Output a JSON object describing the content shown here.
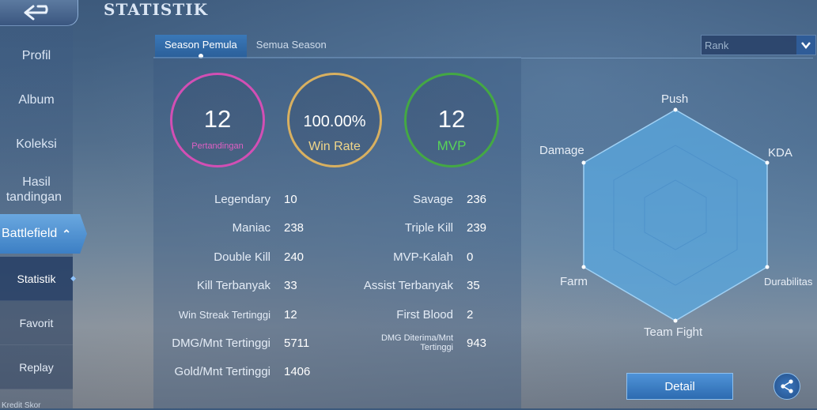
{
  "header": {
    "title": "STATISTIK",
    "back_icon": "back-arrow-icon"
  },
  "sidebar": {
    "items": [
      {
        "label": "Profil"
      },
      {
        "label": "Album"
      },
      {
        "label": "Koleksi"
      },
      {
        "label_line1": "Hasil",
        "label_line2": "tandingan"
      }
    ],
    "active_label": "Battlefield",
    "sub_items": [
      {
        "label": "Statistik",
        "selected": true
      },
      {
        "label": "Favorit"
      },
      {
        "label": "Replay"
      }
    ],
    "cut_item": "Kredit Skor"
  },
  "tabs": [
    {
      "label": "Season Pemula",
      "selected": true
    },
    {
      "label": "Semua Season"
    }
  ],
  "filter": {
    "value": "Rank"
  },
  "summary": {
    "matches": {
      "value": "12",
      "label": "Pertandingan",
      "color": "#d24fb4"
    },
    "win_rate": {
      "value": "100.00%",
      "label": "Win Rate",
      "color": "#d8b060"
    },
    "mvp": {
      "value": "12",
      "label": "MVP",
      "color": "#44a844"
    }
  },
  "stats_left": [
    {
      "label": "Legendary",
      "value": "10"
    },
    {
      "label": "Maniac",
      "value": "238"
    },
    {
      "label": "Double Kill",
      "value": "240"
    },
    {
      "label": "Kill Terbanyak",
      "value": "33"
    },
    {
      "label": "Win Streak Tertinggi",
      "value": "12"
    },
    {
      "label": "DMG/Mnt Tertinggi",
      "value": "5711"
    },
    {
      "label": "Gold/Mnt Tertinggi",
      "value": "1406"
    }
  ],
  "stats_right": [
    {
      "label": "Savage",
      "value": "236"
    },
    {
      "label": "Triple Kill",
      "value": "239"
    },
    {
      "label": "MVP-Kalah",
      "value": "0"
    },
    {
      "label": "Assist Terbanyak",
      "value": "35"
    },
    {
      "label": "First Blood",
      "value": "2"
    },
    {
      "label_line1": "DMG Diterima/Mnt",
      "label_line2": "Tertinggi",
      "value": "943"
    }
  ],
  "radar": {
    "axes": [
      "Push",
      "KDA",
      "Durabilitas",
      "Team Fight",
      "Farm",
      "Damage"
    ],
    "fill_color": "#5aa8e0"
  },
  "buttons": {
    "detail": "Detail",
    "share_icon": "share-icon"
  }
}
